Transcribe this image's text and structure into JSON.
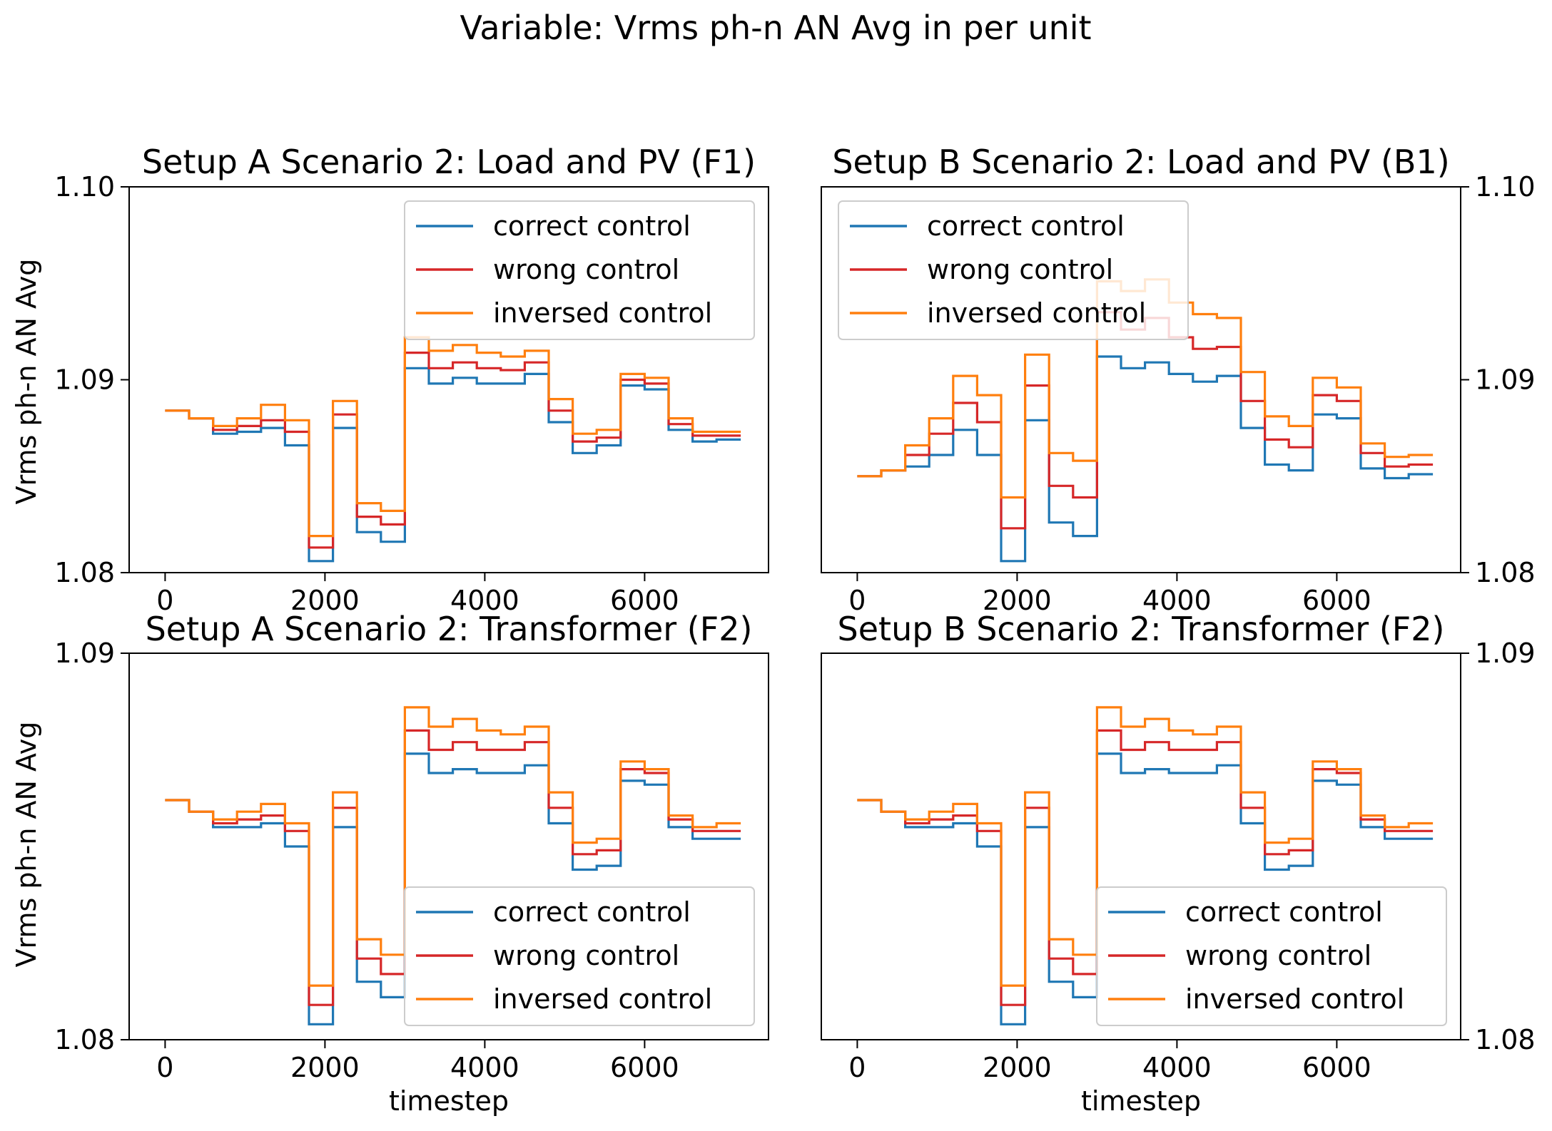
{
  "figure": {
    "suptitle": "Variable: Vrms ph-n AN Avg in per unit"
  },
  "colors": {
    "correct": "#1f77b4",
    "wrong": "#d62728",
    "inversed": "#ff7f0e"
  },
  "chart_data": [
    {
      "type": "line",
      "step": "post",
      "title": "Setup A Scenario 2: Load and PV (F1)",
      "xlabel": "",
      "ylabel": "Vrms ph-n AN Avg",
      "xlim": [
        -450,
        7550
      ],
      "ylim": [
        1.08,
        1.1
      ],
      "xticks": [
        0,
        2000,
        4000,
        6000
      ],
      "xtick_labels": [
        "0",
        "2000",
        "4000",
        "6000"
      ],
      "yticks": [
        1.08,
        1.09,
        1.1
      ],
      "ytick_labels": [
        "1.08",
        "1.09",
        "1.10"
      ],
      "yaxis_side": "left",
      "legend": "top-right",
      "x": [
        0,
        300,
        600,
        900,
        1200,
        1500,
        1800,
        2100,
        2400,
        2700,
        3000,
        3300,
        3600,
        3900,
        4200,
        4500,
        4800,
        5100,
        5400,
        5700,
        6000,
        6300,
        6600,
        6900,
        7200
      ],
      "series": [
        {
          "name": "correct control",
          "color_key": "correct",
          "values": [
            1.0884,
            1.088,
            1.0872,
            1.0873,
            1.0875,
            1.0866,
            1.0806,
            1.0875,
            1.0821,
            1.0816,
            1.0906,
            1.0898,
            1.0901,
            1.0898,
            1.0898,
            1.0903,
            1.0878,
            1.0862,
            1.0866,
            1.0897,
            1.0895,
            1.0874,
            1.0868,
            1.0869,
            1.0869
          ]
        },
        {
          "name": "wrong control",
          "color_key": "wrong",
          "values": [
            1.0884,
            1.088,
            1.0874,
            1.0876,
            1.0879,
            1.0873,
            1.0813,
            1.0882,
            1.0829,
            1.0825,
            1.0914,
            1.0906,
            1.0909,
            1.0906,
            1.0905,
            1.0909,
            1.0884,
            1.0868,
            1.087,
            1.09,
            1.0898,
            1.0877,
            1.0871,
            1.0871,
            1.0871
          ]
        },
        {
          "name": "inversed control",
          "color_key": "inversed",
          "values": [
            1.0884,
            1.088,
            1.0876,
            1.088,
            1.0887,
            1.0879,
            1.0819,
            1.0889,
            1.0836,
            1.0832,
            1.0922,
            1.0915,
            1.0918,
            1.0914,
            1.0912,
            1.0915,
            1.089,
            1.0872,
            1.0874,
            1.0903,
            1.0901,
            1.088,
            1.0873,
            1.0873,
            1.0873
          ]
        }
      ]
    },
    {
      "type": "line",
      "step": "post",
      "title": "Setup B Scenario 2: Load and PV (B1)",
      "xlabel": "",
      "ylabel": "",
      "xlim": [
        -450,
        7550
      ],
      "ylim": [
        1.08,
        1.1
      ],
      "xticks": [
        0,
        2000,
        4000,
        6000
      ],
      "xtick_labels": [
        "0",
        "2000",
        "4000",
        "6000"
      ],
      "yticks": [
        1.08,
        1.09,
        1.1
      ],
      "ytick_labels": [
        "1.08",
        "1.09",
        "1.10"
      ],
      "yaxis_side": "right",
      "legend": "top-left",
      "x": [
        0,
        300,
        600,
        900,
        1200,
        1500,
        1800,
        2100,
        2400,
        2700,
        3000,
        3300,
        3600,
        3900,
        4200,
        4500,
        4800,
        5100,
        5400,
        5700,
        6000,
        6300,
        6600,
        6900,
        7200
      ],
      "series": [
        {
          "name": "correct control",
          "color_key": "correct",
          "values": [
            1.085,
            1.0853,
            1.0855,
            1.0861,
            1.0874,
            1.0861,
            1.0806,
            1.0879,
            1.0826,
            1.0819,
            1.0912,
            1.0906,
            1.0909,
            1.0903,
            1.0899,
            1.0902,
            1.0875,
            1.0856,
            1.0853,
            1.0882,
            1.088,
            1.0854,
            1.0849,
            1.0851,
            1.0851
          ]
        },
        {
          "name": "wrong control",
          "color_key": "wrong",
          "values": [
            1.085,
            1.0853,
            1.0861,
            1.0872,
            1.0888,
            1.0878,
            1.0823,
            1.0897,
            1.0845,
            1.0839,
            1.0935,
            1.0926,
            1.0932,
            1.0922,
            1.0916,
            1.0917,
            1.0889,
            1.0869,
            1.0865,
            1.0892,
            1.0889,
            1.0862,
            1.0855,
            1.0856,
            1.0856
          ]
        },
        {
          "name": "inversed control",
          "color_key": "inversed",
          "values": [
            1.085,
            1.0853,
            1.0866,
            1.088,
            1.0902,
            1.0892,
            1.0839,
            1.0913,
            1.0862,
            1.0858,
            1.0951,
            1.0946,
            1.0952,
            1.094,
            1.0934,
            1.0932,
            1.0904,
            1.0881,
            1.0876,
            1.0901,
            1.0896,
            1.0867,
            1.086,
            1.0861,
            1.0861
          ]
        }
      ]
    },
    {
      "type": "line",
      "step": "post",
      "title": "Setup A Scenario 2: Transformer (F2)",
      "xlabel": "timestep",
      "ylabel": "Vrms ph-n AN Avg",
      "xlim": [
        -450,
        7550
      ],
      "ylim": [
        1.08,
        1.09
      ],
      "xticks": [
        0,
        2000,
        4000,
        6000
      ],
      "xtick_labels": [
        "0",
        "2000",
        "4000",
        "6000"
      ],
      "yticks": [
        1.08,
        1.09
      ],
      "ytick_labels": [
        "1.08",
        "1.09"
      ],
      "yaxis_side": "left",
      "legend": "bottom-right",
      "x": [
        0,
        300,
        600,
        900,
        1200,
        1500,
        1800,
        2100,
        2400,
        2700,
        3000,
        3300,
        3600,
        3900,
        4200,
        4500,
        4800,
        5100,
        5400,
        5700,
        6000,
        6300,
        6600,
        6900,
        7200
      ],
      "series": [
        {
          "name": "correct control",
          "color_key": "correct",
          "values": [
            1.0862,
            1.0859,
            1.0855,
            1.0855,
            1.0856,
            1.085,
            1.0804,
            1.0855,
            1.0815,
            1.0811,
            1.0874,
            1.0869,
            1.087,
            1.0869,
            1.0869,
            1.0871,
            1.0856,
            1.0844,
            1.0845,
            1.0867,
            1.0866,
            1.0855,
            1.0852,
            1.0852,
            1.0852
          ]
        },
        {
          "name": "wrong control",
          "color_key": "wrong",
          "values": [
            1.0862,
            1.0859,
            1.0856,
            1.0857,
            1.0858,
            1.0854,
            1.0809,
            1.086,
            1.0821,
            1.0817,
            1.088,
            1.0875,
            1.0877,
            1.0875,
            1.0875,
            1.0877,
            1.086,
            1.0848,
            1.0849,
            1.087,
            1.0869,
            1.0857,
            1.0854,
            1.0854,
            1.0854
          ]
        },
        {
          "name": "inversed control",
          "color_key": "inversed",
          "values": [
            1.0862,
            1.0859,
            1.0857,
            1.0859,
            1.0861,
            1.0856,
            1.0814,
            1.0864,
            1.0826,
            1.0822,
            1.0886,
            1.0881,
            1.0883,
            1.088,
            1.0879,
            1.0881,
            1.0864,
            1.0851,
            1.0852,
            1.0872,
            1.087,
            1.0858,
            1.0855,
            1.0856,
            1.0856
          ]
        }
      ]
    },
    {
      "type": "line",
      "step": "post",
      "title": "Setup B Scenario 2: Transformer (F2)",
      "xlabel": "timestep",
      "ylabel": "",
      "xlim": [
        -450,
        7550
      ],
      "ylim": [
        1.08,
        1.09
      ],
      "xticks": [
        0,
        2000,
        4000,
        6000
      ],
      "xtick_labels": [
        "0",
        "2000",
        "4000",
        "6000"
      ],
      "yticks": [
        1.08,
        1.09
      ],
      "ytick_labels": [
        "1.08",
        "1.09"
      ],
      "yaxis_side": "right",
      "legend": "bottom-right",
      "x": [
        0,
        300,
        600,
        900,
        1200,
        1500,
        1800,
        2100,
        2400,
        2700,
        3000,
        3300,
        3600,
        3900,
        4200,
        4500,
        4800,
        5100,
        5400,
        5700,
        6000,
        6300,
        6600,
        6900,
        7200
      ],
      "series": [
        {
          "name": "correct control",
          "color_key": "correct",
          "values": [
            1.0862,
            1.0859,
            1.0855,
            1.0855,
            1.0856,
            1.085,
            1.0804,
            1.0855,
            1.0815,
            1.0811,
            1.0874,
            1.0869,
            1.087,
            1.0869,
            1.0869,
            1.0871,
            1.0856,
            1.0844,
            1.0845,
            1.0867,
            1.0866,
            1.0855,
            1.0852,
            1.0852,
            1.0852
          ]
        },
        {
          "name": "wrong control",
          "color_key": "wrong",
          "values": [
            1.0862,
            1.0859,
            1.0856,
            1.0857,
            1.0858,
            1.0854,
            1.0809,
            1.086,
            1.0821,
            1.0817,
            1.088,
            1.0875,
            1.0877,
            1.0875,
            1.0875,
            1.0877,
            1.086,
            1.0848,
            1.0849,
            1.087,
            1.0869,
            1.0857,
            1.0854,
            1.0854,
            1.0854
          ]
        },
        {
          "name": "inversed control",
          "color_key": "inversed",
          "values": [
            1.0862,
            1.0859,
            1.0857,
            1.0859,
            1.0861,
            1.0856,
            1.0814,
            1.0864,
            1.0826,
            1.0822,
            1.0886,
            1.0881,
            1.0883,
            1.088,
            1.0879,
            1.0881,
            1.0864,
            1.0851,
            1.0852,
            1.0872,
            1.087,
            1.0858,
            1.0855,
            1.0856,
            1.0856
          ]
        }
      ]
    }
  ]
}
